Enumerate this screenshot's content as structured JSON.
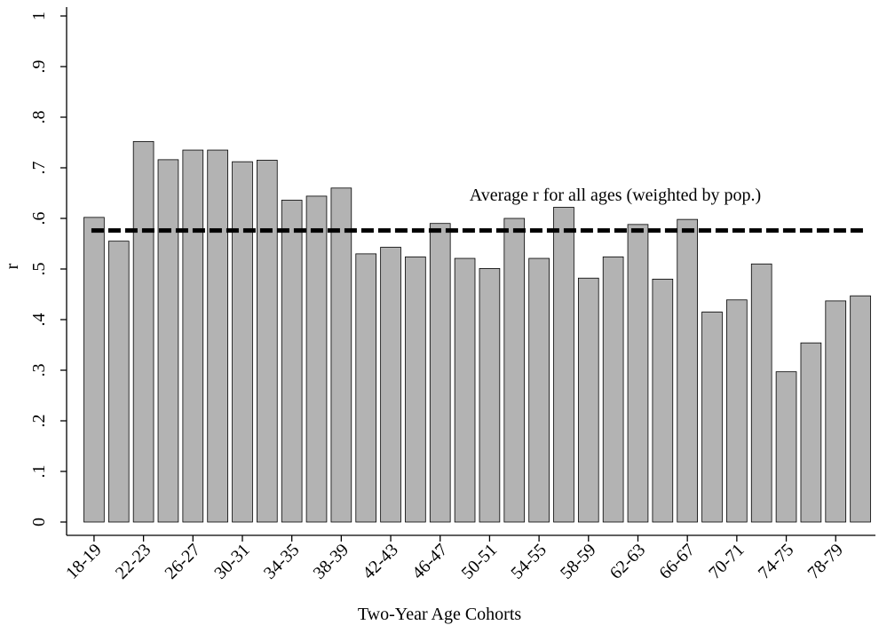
{
  "chart_data": {
    "type": "bar",
    "x_label": "Two-Year Age Cohorts",
    "y_label": "r",
    "categories": [
      "18-19",
      null,
      "22-23",
      null,
      "26-27",
      null,
      "30-31",
      null,
      "34-35",
      null,
      "38-39",
      null,
      "42-43",
      null,
      "46-47",
      null,
      "50-51",
      null,
      "54-55",
      null,
      "58-59",
      null,
      "62-63",
      null,
      "66-67",
      null,
      "70-71",
      null,
      "74-75",
      null,
      "78-79",
      null
    ],
    "values": [
      0.602,
      0.555,
      0.752,
      0.716,
      0.735,
      0.735,
      0.712,
      0.715,
      0.636,
      0.644,
      0.66,
      0.53,
      0.543,
      0.524,
      0.59,
      0.521,
      0.501,
      0.6,
      0.521,
      0.622,
      0.482,
      0.524,
      0.588,
      0.48,
      0.598,
      0.415,
      0.439,
      0.51,
      0.297,
      0.354,
      0.437,
      0.447
    ],
    "color": "#b3b3b3",
    "reference_line": {
      "value": 0.576,
      "label": "Average r for all ages (weighted by pop.)"
    },
    "ylim": [
      0,
      1
    ],
    "yticks": [
      0,
      {
        "value": 0.1,
        "label": ".1"
      },
      {
        "value": 0.2,
        "label": ".2"
      },
      {
        "value": 0.3,
        "label": ".3"
      },
      {
        "value": 0.4,
        "label": ".4"
      },
      {
        "value": 0.5,
        "label": ".5"
      },
      {
        "value": 0.6,
        "label": ".6"
      },
      {
        "value": 0.7,
        "label": ".7"
      },
      {
        "value": 0.8,
        "label": ".8"
      },
      {
        "value": 0.9,
        "label": ".9"
      },
      1
    ],
    "grid": false
  }
}
